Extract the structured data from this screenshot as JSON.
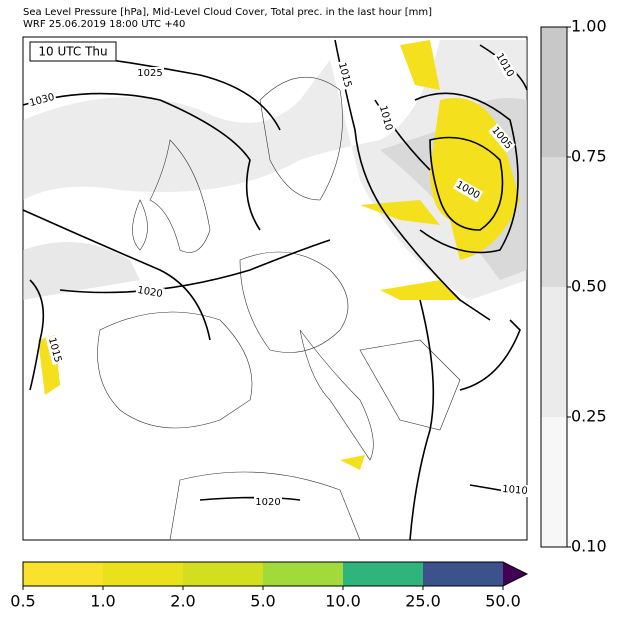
{
  "header": {
    "title_line1": "Sea Level Pressure [hPa], Mid-Level Cloud Cover, Total prec. in the last hour [mm]",
    "title_line2": "WRF 25.06.2019 18:00 UTC +40"
  },
  "time_label": "10 UTC Thu",
  "isobar_labels": [
    1025,
    1030,
    1015,
    1010,
    1010,
    1005,
    1000,
    1020,
    1015,
    1020,
    1010
  ],
  "cloud_colorbar": {
    "ticks": [
      {
        "value": 0.1,
        "label": "0.10"
      },
      {
        "value": 0.25,
        "label": "0.25"
      },
      {
        "value": 0.5,
        "label": "0.50"
      },
      {
        "value": 0.75,
        "label": "0.75"
      },
      {
        "value": 1.0,
        "label": "1.00"
      }
    ],
    "colors": [
      "#f7f7f7",
      "#ebebeb",
      "#dadada",
      "#c8c8c8"
    ]
  },
  "precip_colorbar": {
    "ticks": [
      {
        "value": 0.5,
        "label": "0.5"
      },
      {
        "value": 1,
        "label": "1.0"
      },
      {
        "value": 2,
        "label": "2.0"
      },
      {
        "value": 5,
        "label": "5.0"
      },
      {
        "value": 10,
        "label": "10.0"
      },
      {
        "value": 25,
        "label": "25.0"
      },
      {
        "value": 50,
        "label": "50.0"
      }
    ],
    "colors": [
      "#f8e22b",
      "#e9e11b",
      "#d3de1f",
      "#a1da3a",
      "#2fb47c",
      "#3b528b"
    ],
    "extend_color": "#440154"
  }
}
